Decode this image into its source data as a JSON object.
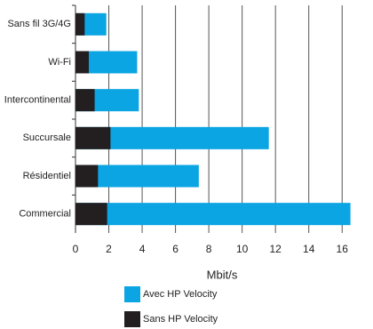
{
  "chart_data": {
    "type": "overlaid-horizontal-bar",
    "categories": [
      "Sans fil 3G/4G",
      "Wi-Fi",
      "Intercontinental",
      "Succursale",
      "Résidentiel",
      "Commercial"
    ],
    "series": [
      {
        "name": "Avec HP Velocity",
        "color": "#0aa5e2",
        "values": [
          1.85,
          3.7,
          3.8,
          11.6,
          7.4,
          16.5
        ]
      },
      {
        "name": "Sans HP Velocity",
        "color": "#231f20",
        "values": [
          0.55,
          0.8,
          1.15,
          2.1,
          1.35,
          1.9
        ]
      }
    ],
    "xlabel": "Mbit/s",
    "xlim": [
      0,
      17
    ],
    "xticks": [
      0,
      2,
      4,
      6,
      8,
      10,
      12,
      14,
      16
    ],
    "grid": true
  }
}
